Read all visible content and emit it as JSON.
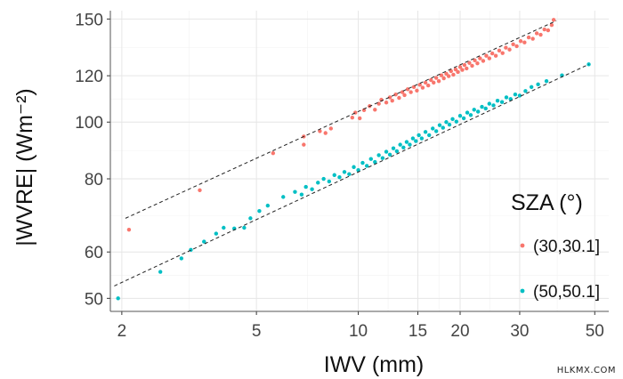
{
  "chart_data": {
    "type": "scatter",
    "x_scale": "log",
    "y_scale": "log",
    "xlim": [
      1.85,
      55
    ],
    "ylim": [
      47.5,
      155
    ],
    "xlabel": "IWV (mm)",
    "ylabel": "|WVRE| (Wm⁻²)",
    "x_ticks": [
      {
        "value": 2,
        "label": "2"
      },
      {
        "value": 5,
        "label": "5"
      },
      {
        "value": 10,
        "label": "10"
      },
      {
        "value": 15,
        "label": "15"
      },
      {
        "value": 20,
        "label": "20"
      },
      {
        "value": 30,
        "label": "30"
      },
      {
        "value": 50,
        "label": "50"
      }
    ],
    "y_ticks": [
      {
        "value": 50,
        "label": "50"
      },
      {
        "value": 60,
        "label": "60"
      },
      {
        "value": 80,
        "label": "80"
      },
      {
        "value": 100,
        "label": "100"
      },
      {
        "value": 120,
        "label": "120"
      },
      {
        "value": 150,
        "label": "150"
      }
    ],
    "grid": true,
    "legend": {
      "title": "SZA (°)",
      "placement": "right"
    },
    "series": [
      {
        "name": "(30,30.1]",
        "color": "#F8766D",
        "fit": {
          "x": [
            2.05,
            38.5
          ],
          "y": [
            68.5,
            149
          ]
        },
        "points": [
          [
            2.1,
            65.5
          ],
          [
            3.4,
            76.5
          ],
          [
            5.6,
            88.5
          ],
          [
            6.9,
            91.5
          ],
          [
            6.9,
            94.5
          ],
          [
            7.7,
            96.5
          ],
          [
            8.0,
            95.8
          ],
          [
            8.3,
            97.5
          ],
          [
            9.6,
            101.8
          ],
          [
            9.8,
            103.8
          ],
          [
            10.1,
            101.5
          ],
          [
            10.4,
            104.8
          ],
          [
            10.8,
            106.5
          ],
          [
            11.2,
            105.0
          ],
          [
            11.5,
            107.5
          ],
          [
            11.7,
            109.2
          ],
          [
            12.1,
            108.0
          ],
          [
            12.4,
            110.2
          ],
          [
            12.6,
            108.8
          ],
          [
            12.9,
            111.5
          ],
          [
            13.2,
            110.0
          ],
          [
            13.5,
            112.5
          ],
          [
            13.7,
            111.2
          ],
          [
            14.0,
            113.8
          ],
          [
            14.3,
            112.5
          ],
          [
            14.6,
            114.8
          ],
          [
            14.9,
            113.2
          ],
          [
            15.2,
            115.8
          ],
          [
            15.5,
            114.5
          ],
          [
            15.8,
            116.8
          ],
          [
            16.1,
            115.5
          ],
          [
            16.4,
            118.0
          ],
          [
            16.7,
            116.8
          ],
          [
            17.0,
            119.0
          ],
          [
            17.3,
            117.5
          ],
          [
            17.6,
            120.2
          ],
          [
            17.9,
            118.8
          ],
          [
            18.2,
            121.0
          ],
          [
            18.5,
            119.8
          ],
          [
            18.8,
            122.2
          ],
          [
            19.1,
            120.5
          ],
          [
            19.4,
            123.0
          ],
          [
            19.7,
            121.8
          ],
          [
            20.0,
            124.2
          ],
          [
            20.3,
            122.8
          ],
          [
            20.6,
            125.2
          ],
          [
            20.9,
            123.5
          ],
          [
            21.3,
            126.2
          ],
          [
            21.7,
            124.8
          ],
          [
            22.1,
            127.5
          ],
          [
            22.5,
            126.0
          ],
          [
            22.9,
            128.5
          ],
          [
            23.4,
            127.2
          ],
          [
            23.9,
            129.8
          ],
          [
            24.4,
            128.5
          ],
          [
            24.9,
            131.0
          ],
          [
            25.5,
            129.8
          ],
          [
            26.1,
            132.5
          ],
          [
            26.7,
            131.2
          ],
          [
            27.3,
            134.0
          ],
          [
            28.0,
            133.0
          ],
          [
            28.7,
            135.8
          ],
          [
            29.4,
            134.8
          ],
          [
            30.2,
            137.5
          ],
          [
            31.0,
            136.8
          ],
          [
            31.9,
            139.5
          ],
          [
            32.8,
            138.8
          ],
          [
            33.7,
            141.8
          ],
          [
            34.6,
            141.0
          ],
          [
            35.5,
            144.0
          ],
          [
            36.4,
            143.5
          ],
          [
            37.3,
            146.5
          ],
          [
            37.8,
            149.5
          ]
        ]
      },
      {
        "name": "(50,50.1]",
        "color": "#00BFC4",
        "fit": {
          "x": [
            1.9,
            48
          ],
          "y": [
            52.5,
            125.5
          ]
        },
        "points": [
          [
            1.95,
            50.0
          ],
          [
            2.6,
            55.5
          ],
          [
            3.0,
            58.5
          ],
          [
            3.2,
            60.5
          ],
          [
            3.5,
            62.5
          ],
          [
            3.8,
            64.5
          ],
          [
            4.0,
            66.0
          ],
          [
            4.3,
            65.8
          ],
          [
            4.6,
            66.0
          ],
          [
            4.8,
            68.5
          ],
          [
            5.1,
            70.5
          ],
          [
            5.4,
            72.0
          ],
          [
            6.0,
            74.5
          ],
          [
            6.5,
            76.0
          ],
          [
            6.8,
            75.2
          ],
          [
            7.0,
            77.5
          ],
          [
            7.3,
            76.8
          ],
          [
            7.6,
            78.8
          ],
          [
            7.9,
            80.0
          ],
          [
            8.2,
            79.2
          ],
          [
            8.5,
            81.2
          ],
          [
            8.8,
            80.5
          ],
          [
            9.1,
            82.2
          ],
          [
            9.4,
            81.5
          ],
          [
            9.7,
            83.8
          ],
          [
            10.0,
            82.8
          ],
          [
            10.3,
            85.2
          ],
          [
            10.6,
            84.2
          ],
          [
            10.9,
            86.5
          ],
          [
            11.2,
            85.5
          ],
          [
            11.5,
            87.8
          ],
          [
            11.8,
            86.8
          ],
          [
            12.1,
            89.0
          ],
          [
            12.4,
            88.0
          ],
          [
            12.7,
            90.2
          ],
          [
            13.0,
            89.2
          ],
          [
            13.3,
            91.5
          ],
          [
            13.6,
            90.5
          ],
          [
            13.9,
            92.5
          ],
          [
            14.2,
            91.5
          ],
          [
            14.5,
            93.8
          ],
          [
            14.8,
            92.8
          ],
          [
            15.1,
            95.0
          ],
          [
            15.4,
            93.8
          ],
          [
            15.8,
            96.2
          ],
          [
            16.2,
            95.0
          ],
          [
            16.6,
            97.5
          ],
          [
            17.0,
            96.5
          ],
          [
            17.4,
            98.8
          ],
          [
            17.8,
            97.8
          ],
          [
            18.2,
            100.0
          ],
          [
            18.6,
            99.0
          ],
          [
            19.0,
            101.2
          ],
          [
            19.5,
            100.2
          ],
          [
            20.0,
            102.5
          ],
          [
            20.5,
            101.5
          ],
          [
            21.0,
            103.8
          ],
          [
            21.5,
            102.8
          ],
          [
            22.0,
            105.0
          ],
          [
            22.6,
            104.2
          ],
          [
            23.2,
            106.2
          ],
          [
            23.8,
            105.5
          ],
          [
            24.4,
            107.5
          ],
          [
            25.1,
            106.8
          ],
          [
            25.8,
            108.8
          ],
          [
            26.6,
            108.2
          ],
          [
            27.4,
            110.2
          ],
          [
            28.2,
            109.5
          ],
          [
            29.1,
            111.5
          ],
          [
            30.0,
            111.0
          ],
          [
            31.2,
            113.0
          ],
          [
            32.5,
            114.8
          ],
          [
            34.0,
            116.0
          ],
          [
            36.0,
            117.5
          ],
          [
            40.0,
            120.2
          ],
          [
            48.0,
            125.5
          ]
        ]
      }
    ]
  },
  "watermark": "HLKMX.COM"
}
